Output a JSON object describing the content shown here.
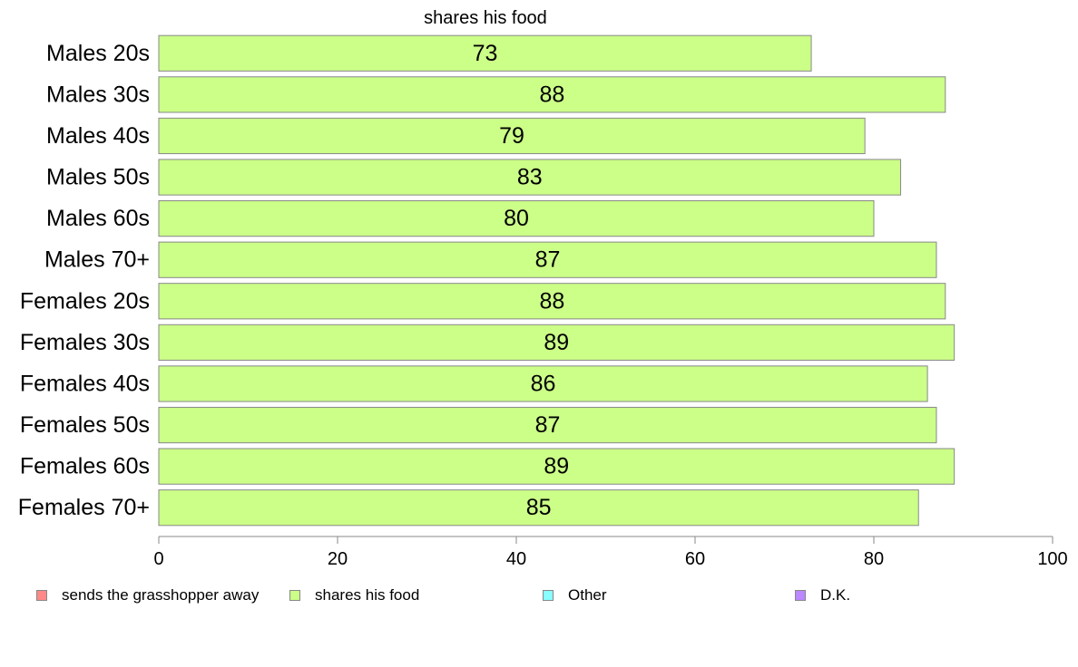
{
  "chart_data": {
    "type": "bar",
    "orientation": "horizontal",
    "title": "shares his food",
    "categories": [
      "Males 20s",
      "Males 30s",
      "Males 40s",
      "Males 50s",
      "Males 60s",
      "Males 70+",
      "Females 20s",
      "Females 30s",
      "Females 40s",
      "Females 50s",
      "Females 60s",
      "Females 70+"
    ],
    "values": [
      73,
      88,
      79,
      83,
      80,
      87,
      88,
      89,
      86,
      87,
      89,
      85
    ],
    "data_labels": [
      "73",
      "88",
      "79",
      "83",
      "80",
      "87",
      "88",
      "89",
      "86",
      "87",
      "89",
      "85"
    ],
    "xlim": [
      0,
      100
    ],
    "xticks": [
      0,
      20,
      40,
      60,
      80,
      100
    ],
    "xtick_labels": [
      "0",
      "20",
      "40",
      "60",
      "80",
      "100"
    ],
    "xlabel": "",
    "ylabel": "",
    "grid": false,
    "bar_color": "#ccff88",
    "bar_edge_color": "#888888",
    "legend_position": "bottom",
    "legend": [
      {
        "label": "sends the grasshopper away",
        "color": "#ff8888"
      },
      {
        "label": "shares his food",
        "color": "#ccff88"
      },
      {
        "label": "Other",
        "color": "#88ffff"
      },
      {
        "label": "D.K.",
        "color": "#bb88ff"
      }
    ]
  }
}
